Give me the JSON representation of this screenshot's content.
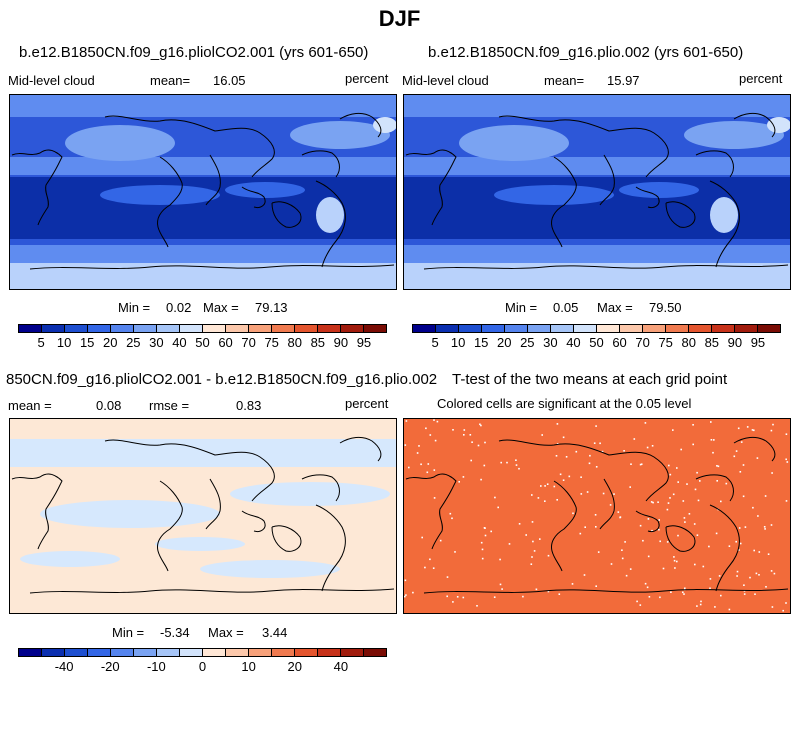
{
  "title": "DJF",
  "panels": [
    {
      "id": "top-left",
      "title": "b.e12.B1850CN.f09_g16.pliolCO2.001 (yrs 601-650)",
      "variable": "Mid-level cloud",
      "mean_label": "mean=",
      "mean_value": "16.05",
      "units": "percent",
      "min_label": "Min =",
      "min_value": "0.02",
      "max_label": "Max =",
      "max_value": "79.13"
    },
    {
      "id": "top-right",
      "title": "b.e12.B1850CN.f09_g16.plio.002 (yrs 601-650)",
      "variable": "Mid-level cloud",
      "mean_label": "mean=",
      "mean_value": "15.97",
      "units": "percent",
      "min_label": "Min =",
      "min_value": "0.05",
      "max_label": "Max =",
      "max_value": "79.50"
    },
    {
      "id": "bottom-left",
      "title": "850CN.f09_g16.pliolCO2.001 - b.e12.B1850CN.f09_g16.plio.002",
      "mean_label": "mean =",
      "mean_value": "0.08",
      "rmse_label": "rmse =",
      "rmse_value": "0.83",
      "units": "percent",
      "min_label": "Min =",
      "min_value": "-5.34",
      "max_label": "Max =",
      "max_value": "3.44"
    },
    {
      "id": "bottom-right",
      "title": "T-test of the two means at each grid point",
      "subtitle": "Colored cells are significant at the 0.05 level"
    }
  ],
  "colorbar_top": {
    "colors": [
      "#00008b",
      "#0b2fb0",
      "#1e4fd0",
      "#3366e6",
      "#5584ee",
      "#7aa3f2",
      "#a6c5f7",
      "#d2e3fb",
      "#ffe7d6",
      "#fcc8ab",
      "#f7a17a",
      "#f07a4f",
      "#e4552e",
      "#c7321a",
      "#a11c0d",
      "#7a0c04"
    ],
    "ticks": [
      "5",
      "10",
      "15",
      "20",
      "25",
      "30",
      "40",
      "50",
      "60",
      "70",
      "75",
      "80",
      "85",
      "90",
      "95"
    ]
  },
  "colorbar_bottom": {
    "colors": [
      "#00008b",
      "#0b2fb0",
      "#1e4fd0",
      "#3366e6",
      "#5584ee",
      "#7aa3f2",
      "#a6c5f7",
      "#d2e3fb",
      "#ffe7d6",
      "#fcc8ab",
      "#f7a17a",
      "#f07a4f",
      "#e4552e",
      "#c7321a",
      "#a11c0d",
      "#7a0c04"
    ],
    "ticks": [
      "-40",
      "-20",
      "-10",
      "0",
      "10",
      "20",
      "40"
    ]
  },
  "colors": {
    "ocean_dark": "#0c2fa8",
    "ocean_mid": "#2d57d8",
    "ocean_light": "#5f8cf0",
    "cloud_light": "#b9d2fb",
    "diff_blue": "#d6e8fd",
    "diff_peach": "#fde8d6",
    "ttest": "#f26b3a"
  }
}
